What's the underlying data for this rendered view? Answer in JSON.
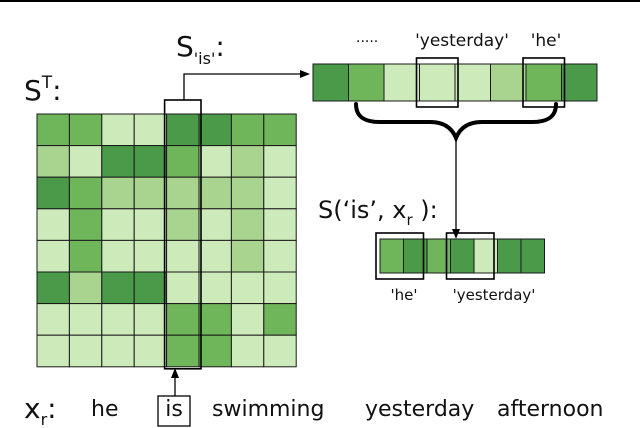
{
  "colors": {
    "dark": "#4a9a4a",
    "mid": "#6fb55a",
    "light": "#a8d48f",
    "pale": "#cdeabb",
    "outline": "#000000"
  },
  "matrix": {
    "label_base": "S",
    "label_sup": "T",
    "label_colon": ":",
    "highlight_col": 4,
    "cells": [
      [
        "mid",
        "mid",
        "pale",
        "pale",
        "dark",
        "dark",
        "mid",
        "mid"
      ],
      [
        "light",
        "pale",
        "dark",
        "dark",
        "mid",
        "pale",
        "light",
        "pale"
      ],
      [
        "dark",
        "mid",
        "light",
        "light",
        "light",
        "light",
        "light",
        "pale"
      ],
      [
        "pale",
        "mid",
        "pale",
        "pale",
        "light",
        "pale",
        "light",
        "pale"
      ],
      [
        "pale",
        "mid",
        "pale",
        "pale",
        "pale",
        "pale",
        "light",
        "pale"
      ],
      [
        "dark",
        "light",
        "dark",
        "dark",
        "pale",
        "pale",
        "pale",
        "pale"
      ],
      [
        "pale",
        "pale",
        "pale",
        "pale",
        "mid",
        "mid",
        "pale",
        "mid"
      ],
      [
        "pale",
        "pale",
        "pale",
        "pale",
        "mid",
        "mid",
        "pale",
        "pale"
      ]
    ]
  },
  "row_vector": {
    "label_base": "S",
    "label_sub": "'is'",
    "label_colon": ":",
    "cells": [
      "dark",
      "mid",
      "pale",
      "pale",
      "pale",
      "light",
      "mid",
      "dark"
    ],
    "dots": "·····",
    "word_yesterday": "'yesterday'",
    "word_he": "'he'",
    "box_yesterday": 3,
    "box_he": 6
  },
  "result_vector": {
    "label": "S(‘is’, x",
    "label_sub": "r",
    "label_close": " ):",
    "cells": [
      "mid",
      "dark",
      "mid",
      "dark",
      "pale",
      "dark",
      "dark"
    ],
    "word_he": "'he'",
    "word_yesterday": "'yesterday'",
    "box_he": 0,
    "box_yesterday": 3
  },
  "sentence": {
    "label_base": "x",
    "label_sub": "r",
    "label_colon": ":",
    "words": [
      "he",
      "is",
      "swimming",
      "yesterday",
      "afternoon"
    ],
    "boxed_index": 1
  }
}
